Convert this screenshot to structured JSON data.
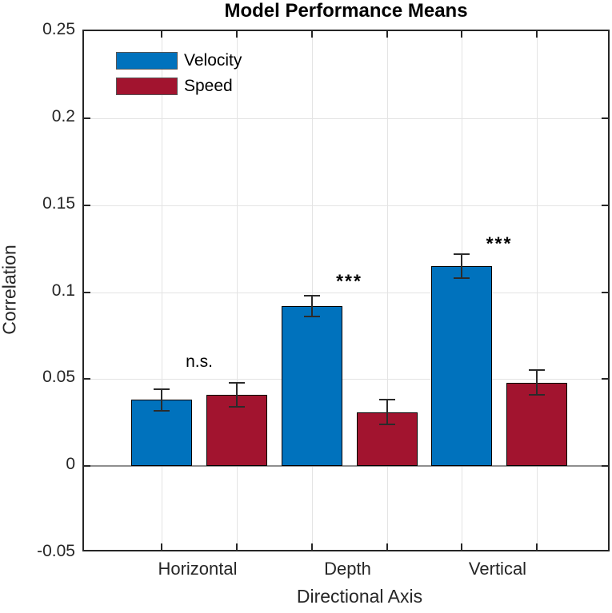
{
  "chart_data": {
    "type": "bar",
    "title": "Model Performance Means",
    "xlabel": "Directional Axis",
    "ylabel": "Correlation",
    "categories": [
      "Horizontal",
      "Depth",
      "Vertical"
    ],
    "series": [
      {
        "name": "Velocity",
        "color": "#0072BD",
        "values": [
          0.038,
          0.092,
          0.115
        ],
        "errors": [
          0.006,
          0.006,
          0.007
        ]
      },
      {
        "name": "Speed",
        "color": "#A2142F",
        "values": [
          0.041,
          0.031,
          0.048
        ],
        "errors": [
          0.007,
          0.007,
          0.007
        ]
      }
    ],
    "annotations": [
      {
        "text": "n.s.",
        "group": 0,
        "y": 0.06,
        "style": "plain"
      },
      {
        "text": "***",
        "group": 1,
        "y": 0.106,
        "style": "stars"
      },
      {
        "text": "***",
        "group": 2,
        "y": 0.128,
        "style": "stars"
      }
    ],
    "ylim": [
      -0.05,
      0.25
    ],
    "yticks": [
      0.25,
      0.2,
      0.15,
      0.1,
      0.05,
      0,
      -0.05
    ],
    "ytick_labels": [
      "0.25",
      "0.2",
      "0.15",
      "0.1",
      "0.05",
      "0",
      "-0.05"
    ],
    "grid": true,
    "legend_position": "top-left",
    "colors": {
      "axis": "#262626",
      "grid": "#e4e4e4",
      "zero_line": "#8e8e8e"
    }
  }
}
